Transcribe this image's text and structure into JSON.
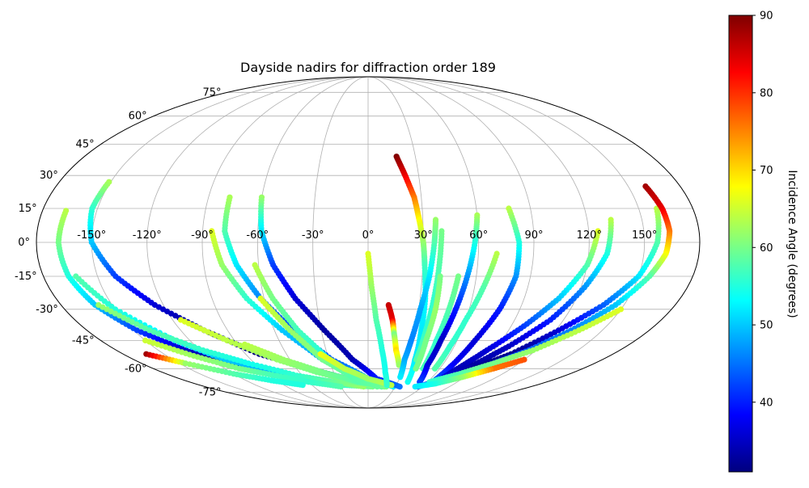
{
  "chart_data": {
    "type": "scatter",
    "projection": "mollweide",
    "title": "Dayside nadirs for diffraction order 189",
    "colorbar": {
      "label": "Incidence Angle (degrees)",
      "range": [
        31,
        90
      ],
      "ticks": [
        "40",
        "50",
        "60",
        "70",
        "80",
        "90"
      ],
      "tick_values": [
        40,
        50,
        60,
        70,
        80,
        90
      ],
      "colormap": "jet"
    },
    "lon_ticks": [
      {
        "value": -150,
        "label": "-150°"
      },
      {
        "value": -120,
        "label": "-120°"
      },
      {
        "value": -90,
        "label": "-90°"
      },
      {
        "value": -60,
        "label": "-60°"
      },
      {
        "value": -30,
        "label": "-30°"
      },
      {
        "value": 0,
        "label": "0°"
      },
      {
        "value": 30,
        "label": "30°"
      },
      {
        "value": 60,
        "label": "60°"
      },
      {
        "value": 90,
        "label": "90°"
      },
      {
        "value": 120,
        "label": "120°"
      },
      {
        "value": 150,
        "label": "150°"
      }
    ],
    "lat_ticks": [
      {
        "value": 75,
        "label": "75°"
      },
      {
        "value": 60,
        "label": "60°"
      },
      {
        "value": 45,
        "label": "45°"
      },
      {
        "value": 30,
        "label": "30°"
      },
      {
        "value": 15,
        "label": "15°"
      },
      {
        "value": 0,
        "label": "0°"
      },
      {
        "value": -15,
        "label": "-15°"
      },
      {
        "value": -30,
        "label": "-30°"
      },
      {
        "value": -45,
        "label": "-45°"
      },
      {
        "value": -60,
        "label": "-60°"
      },
      {
        "value": -75,
        "label": "-75°"
      }
    ],
    "grid": true,
    "series": [
      {
        "points": [
          [
            -167,
            14,
            64
          ],
          [
            -168,
            0,
            60
          ],
          [
            -166,
            -15,
            55
          ],
          [
            -160,
            -28,
            50
          ],
          [
            -148,
            -40,
            42
          ],
          [
            -130,
            -50,
            35
          ],
          [
            -105,
            -58,
            32
          ],
          [
            -70,
            -64,
            33
          ],
          [
            -35,
            -68,
            38
          ],
          [
            -5,
            -70,
            45
          ]
        ]
      },
      {
        "points": [
          [
            -151,
            27,
            63
          ],
          [
            -153,
            15,
            56
          ],
          [
            -150,
            0,
            50
          ],
          [
            -140,
            -15,
            42
          ],
          [
            -125,
            -28,
            36
          ],
          [
            -105,
            -40,
            32
          ],
          [
            -80,
            -52,
            31
          ],
          [
            -50,
            -60,
            33
          ],
          [
            -20,
            -66,
            38
          ],
          [
            5,
            -70,
            46
          ]
        ]
      },
      {
        "points": [
          [
            -162,
            -15,
            58
          ],
          [
            -150,
            -30,
            55
          ],
          [
            -130,
            -45,
            52
          ],
          [
            -110,
            -55,
            50
          ],
          [
            -85,
            -62,
            48
          ],
          [
            -55,
            -67,
            52
          ],
          [
            -25,
            -70,
            56
          ],
          [
            5,
            -71,
            60
          ]
        ]
      },
      {
        "points": [
          [
            -158,
            -28,
            62
          ],
          [
            -140,
            -40,
            58
          ],
          [
            -118,
            -50,
            56
          ],
          [
            -95,
            -57,
            54
          ],
          [
            -65,
            -64,
            56
          ],
          [
            -35,
            -68,
            59
          ],
          [
            -5,
            -71,
            62
          ]
        ]
      },
      {
        "points": [
          [
            -150,
            -45,
            65
          ],
          [
            -130,
            -53,
            62
          ],
          [
            -108,
            -60,
            60
          ],
          [
            -85,
            -64,
            57
          ],
          [
            -60,
            -68,
            56
          ],
          [
            -30,
            -71,
            58
          ]
        ]
      },
      {
        "points": [
          [
            -163,
            -52,
            88
          ],
          [
            -145,
            -57,
            62
          ],
          [
            -120,
            -63,
            58
          ],
          [
            -95,
            -67,
            55
          ],
          [
            -70,
            -70,
            55
          ]
        ]
      },
      {
        "points": [
          [
            -115,
            -35,
            66
          ],
          [
            -95,
            -45,
            64
          ],
          [
            -70,
            -55,
            62
          ],
          [
            -45,
            -62,
            60
          ],
          [
            -15,
            -68,
            60
          ],
          [
            15,
            -71,
            62
          ]
        ]
      },
      {
        "points": [
          [
            -85,
            -47,
            64
          ],
          [
            -65,
            -55,
            62
          ],
          [
            -40,
            -62,
            60
          ],
          [
            -10,
            -68,
            58
          ],
          [
            20,
            -71,
            60
          ]
        ]
      },
      {
        "points": [
          [
            -85,
            5,
            66
          ],
          [
            -80,
            -10,
            62
          ],
          [
            -70,
            -25,
            56
          ],
          [
            -55,
            -40,
            50
          ],
          [
            -35,
            -55,
            48
          ],
          [
            -10,
            -66,
            52
          ],
          [
            15,
            -71,
            58
          ]
        ]
      },
      {
        "points": [
          [
            -78,
            20,
            63
          ],
          [
            -78,
            5,
            58
          ],
          [
            -72,
            -10,
            52
          ],
          [
            -62,
            -25,
            46
          ],
          [
            -48,
            -40,
            42
          ],
          [
            -28,
            -55,
            44
          ],
          [
            0,
            -66,
            48
          ],
          [
            28,
            -71,
            52
          ]
        ]
      },
      {
        "points": [
          [
            -62,
            -10,
            64
          ],
          [
            -55,
            -25,
            60
          ],
          [
            -45,
            -40,
            57
          ],
          [
            -30,
            -55,
            55
          ],
          [
            -8,
            -66,
            57
          ],
          [
            18,
            -71,
            60
          ]
        ]
      },
      {
        "points": [
          [
            -62,
            -25,
            66
          ],
          [
            -50,
            -40,
            62
          ],
          [
            -35,
            -55,
            60
          ],
          [
            -15,
            -65,
            58
          ],
          [
            10,
            -71,
            59
          ]
        ]
      },
      {
        "points": [
          [
            -60,
            20,
            62
          ],
          [
            -58,
            5,
            52
          ],
          [
            -52,
            -10,
            42
          ],
          [
            -42,
            -25,
            36
          ],
          [
            -28,
            -40,
            33
          ],
          [
            -12,
            -55,
            34
          ],
          [
            8,
            -66,
            40
          ],
          [
            35,
            -71,
            45
          ]
        ]
      },
      {
        "points": [
          [
            -35,
            -52,
            67
          ],
          [
            -20,
            -60,
            64
          ],
          [
            0,
            -66,
            62
          ],
          [
            25,
            -70,
            64
          ]
        ]
      },
      {
        "points": [
          [
            0,
            -5,
            66
          ],
          [
            2,
            -20,
            62
          ],
          [
            5,
            -35,
            58
          ],
          [
            10,
            -50,
            55
          ],
          [
            15,
            -62,
            54
          ],
          [
            20,
            -70,
            56
          ]
        ]
      },
      {
        "points": [
          [
            12,
            -28,
            86
          ],
          [
            15,
            -35,
            84
          ],
          [
            17,
            -42,
            60
          ],
          [
            20,
            -50,
            70
          ],
          [
            25,
            -58,
            62
          ]
        ]
      },
      {
        "points": [
          [
            18,
            39,
            90
          ],
          [
            22,
            30,
            84
          ],
          [
            26,
            20,
            76
          ],
          [
            28,
            10,
            68
          ],
          [
            30,
            0,
            62
          ],
          [
            31,
            -10,
            57
          ],
          [
            33,
            -25,
            53
          ],
          [
            34,
            -40,
            52
          ],
          [
            36,
            -55,
            52
          ],
          [
            40,
            -68,
            54
          ]
        ]
      },
      {
        "points": [
          [
            37,
            10,
            62
          ],
          [
            36,
            0,
            58
          ],
          [
            34,
            -15,
            52
          ],
          [
            31,
            -30,
            48
          ],
          [
            29,
            -45,
            46
          ],
          [
            28,
            -55,
            48
          ],
          [
            30,
            -65,
            52
          ]
        ]
      },
      {
        "points": [
          [
            40,
            5,
            60
          ],
          [
            39,
            -10,
            58
          ],
          [
            38,
            -25,
            56
          ],
          [
            37,
            -40,
            56
          ],
          [
            37,
            -55,
            58
          ]
        ]
      },
      {
        "points": [
          [
            40,
            -15,
            60
          ],
          [
            40,
            -30,
            62
          ],
          [
            39,
            -45,
            60
          ],
          [
            40,
            -60,
            60
          ]
        ]
      },
      {
        "points": [
          [
            50,
            -15,
            60
          ],
          [
            48,
            -30,
            58
          ],
          [
            46,
            -45,
            56
          ],
          [
            46,
            -60,
            57
          ]
        ]
      },
      {
        "points": [
          [
            60,
            12,
            63
          ],
          [
            58,
            0,
            55
          ],
          [
            55,
            -15,
            47
          ],
          [
            52,
            -30,
            40
          ],
          [
            49,
            -45,
            35
          ],
          [
            48,
            -58,
            36
          ],
          [
            52,
            -68,
            42
          ]
        ]
      },
      {
        "points": [
          [
            70,
            -5,
            64
          ],
          [
            65,
            -20,
            58
          ],
          [
            60,
            -35,
            56
          ],
          [
            57,
            -48,
            56
          ],
          [
            56,
            -60,
            58
          ]
        ]
      },
      {
        "points": [
          [
            78,
            15,
            64
          ],
          [
            82,
            0,
            55
          ],
          [
            82,
            -15,
            47
          ],
          [
            78,
            -30,
            40
          ],
          [
            72,
            -45,
            36
          ],
          [
            68,
            -58,
            38
          ],
          [
            65,
            -68,
            44
          ]
        ]
      },
      {
        "points": [
          [
            125,
            5,
            66
          ],
          [
            120,
            -10,
            58
          ],
          [
            110,
            -25,
            50
          ],
          [
            98,
            -38,
            42
          ],
          [
            85,
            -50,
            36
          ],
          [
            75,
            -60,
            34
          ],
          [
            68,
            -68,
            38
          ]
        ]
      },
      {
        "points": [
          [
            133,
            10,
            64
          ],
          [
            130,
            -5,
            55
          ],
          [
            122,
            -20,
            47
          ],
          [
            112,
            -35,
            40
          ],
          [
            98,
            -48,
            35
          ],
          [
            85,
            -58,
            33
          ],
          [
            75,
            -66,
            36
          ]
        ]
      },
      {
        "points": [
          [
            160,
            15,
            64
          ],
          [
            157,
            0,
            58
          ],
          [
            150,
            -15,
            52
          ],
          [
            138,
            -28,
            44
          ],
          [
            122,
            -40,
            36
          ],
          [
            105,
            -52,
            32
          ],
          [
            88,
            -60,
            32
          ],
          [
            72,
            -67,
            36
          ],
          [
            55,
            -71,
            40
          ]
        ]
      },
      {
        "points": [
          [
            160,
            25,
            88
          ],
          [
            163,
            15,
            84
          ],
          [
            164,
            5,
            76
          ],
          [
            162,
            -5,
            68
          ],
          [
            156,
            -15,
            58
          ],
          [
            145,
            -28,
            50
          ],
          [
            130,
            -40,
            46
          ],
          [
            115,
            -50,
            44
          ],
          [
            98,
            -58,
            44
          ],
          [
            82,
            -64,
            45
          ],
          [
            65,
            -69,
            48
          ]
        ]
      },
      {
        "points": [
          [
            150,
            -30,
            66
          ],
          [
            135,
            -40,
            64
          ],
          [
            118,
            -50,
            62
          ],
          [
            100,
            -57,
            60
          ],
          [
            82,
            -63,
            58
          ],
          [
            62,
            -68,
            56
          ]
        ]
      },
      {
        "points": [
          [
            120,
            -55,
            78
          ],
          [
            105,
            -60,
            76
          ],
          [
            88,
            -65,
            62
          ],
          [
            70,
            -69,
            55
          ],
          [
            52,
            -71,
            52
          ]
        ]
      }
    ]
  }
}
